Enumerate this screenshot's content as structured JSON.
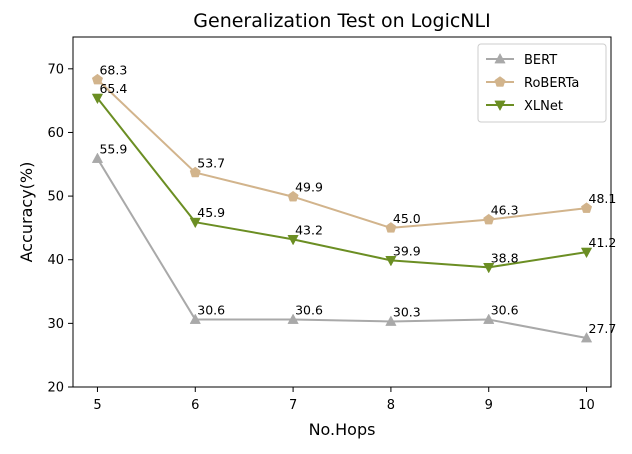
{
  "chart_data": {
    "type": "line",
    "title": "Generalization Test on LogicNLI",
    "xlabel": "No.Hops",
    "ylabel": "Accuracy(%)",
    "x": [
      5,
      6,
      7,
      8,
      9,
      10
    ],
    "xticks": [
      "5",
      "6",
      "7",
      "8",
      "9",
      "10"
    ],
    "xlim": [
      4.75,
      10.25
    ],
    "ylim": [
      20,
      75
    ],
    "yticks": [
      "20",
      "30",
      "40",
      "50",
      "60",
      "70"
    ],
    "grid": false,
    "legend_position": "top-right",
    "series": [
      {
        "name": "BERT",
        "color": "#a9a9a9",
        "marker": "triangle-up",
        "values": [
          55.9,
          30.6,
          30.6,
          30.3,
          30.6,
          27.7
        ],
        "labels": [
          "55.9",
          "30.6",
          "30.6",
          "30.3",
          "30.6",
          "27.7"
        ]
      },
      {
        "name": "RoBERTa",
        "color": "#d2b48c",
        "marker": "pentagon",
        "values": [
          68.3,
          53.7,
          49.9,
          45.0,
          46.3,
          48.1
        ],
        "labels": [
          "68.3",
          "53.7",
          "49.9",
          "45.0",
          "46.3",
          "48.1"
        ]
      },
      {
        "name": "XLNet",
        "color": "#6b8e23",
        "marker": "triangle-down",
        "values": [
          65.4,
          45.9,
          43.2,
          39.9,
          38.8,
          41.2
        ],
        "labels": [
          "65.4",
          "45.9",
          "43.2",
          "39.9",
          "38.8",
          "41.2"
        ]
      }
    ]
  }
}
